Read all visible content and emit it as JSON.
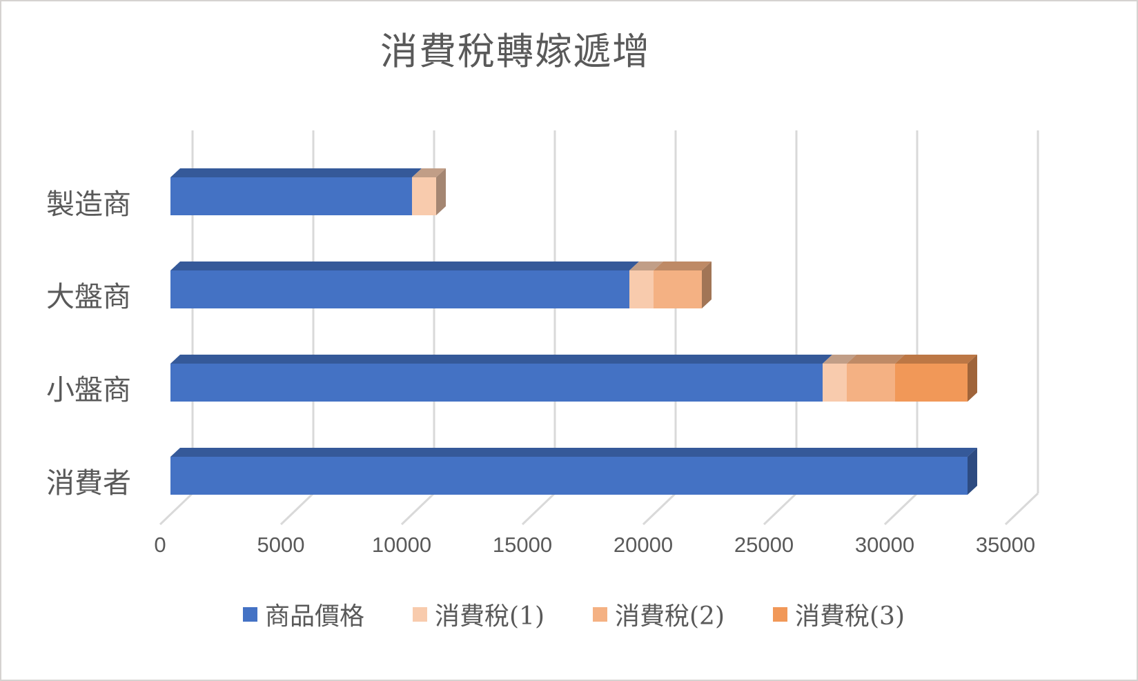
{
  "window": {
    "background": "#FFFFFF",
    "border_color": "#D5D2D0"
  },
  "chart_data": {
    "type": "bar",
    "orientation": "horizontal",
    "style": "3d-stacked",
    "title": "消費稅轉嫁遞增",
    "title_color": "#595959",
    "categories": [
      "製造商",
      "大盤商",
      "小盤商",
      "消費者"
    ],
    "series": [
      {
        "name": "商品價格",
        "color": "#4472C4",
        "values": [
          10000,
          19000,
          27000,
          33000
        ]
      },
      {
        "name": "消費稅(1)",
        "color": "#F8CBAD",
        "values": [
          1000,
          1000,
          1000,
          0
        ]
      },
      {
        "name": "消費稅(2)",
        "color": "#F4B183",
        "values": [
          0,
          2000,
          2000,
          0
        ]
      },
      {
        "name": "消費稅(3)",
        "color": "#F19858",
        "values": [
          0,
          0,
          3000,
          0
        ]
      }
    ],
    "totals": [
      11000,
      22000,
      33000,
      33000
    ],
    "x_ticks": [
      "0",
      "5000",
      "10000",
      "15000",
      "20000",
      "25000",
      "30000",
      "35000"
    ],
    "xlim": [
      0,
      35000
    ],
    "grid": true,
    "gridline_color": "#D9D9D9",
    "axis_text_color": "#595959",
    "legend_position": "bottom",
    "legend": [
      "商品價格",
      "消費稅(1)",
      "消費稅(2)",
      "消費稅(3)"
    ]
  }
}
